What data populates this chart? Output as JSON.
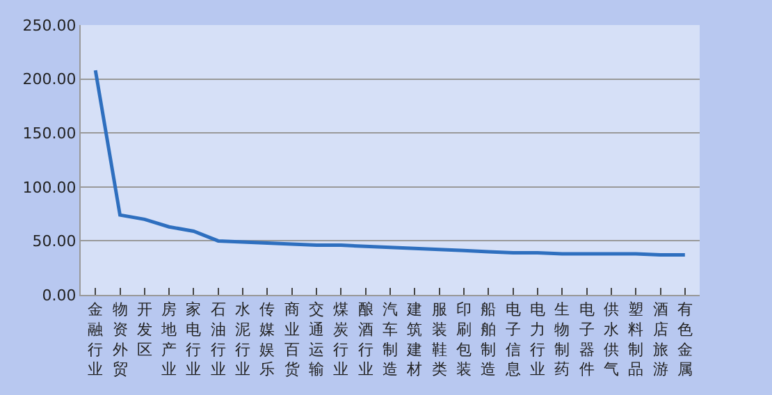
{
  "chart_data": {
    "type": "line",
    "categories": [
      "金融行业",
      "物资外贸",
      "开发区",
      "房地产业",
      "家电行业",
      "石油行业",
      "水泥行业",
      "传媒娱乐",
      "商业百货",
      "交通运输",
      "煤炭行业",
      "酿酒行业",
      "汽车制造",
      "建筑建材",
      "服装鞋类",
      "印刷包装",
      "船舶制造",
      "电子信息",
      "电力行业",
      "生物制药",
      "电子器件",
      "供水供气",
      "塑料制品",
      "酒店旅游",
      "有色金属"
    ],
    "series": [
      {
        "color": "#2e6fbf",
        "values": [
          208,
          74,
          70,
          63,
          59,
          50,
          49,
          48,
          47,
          46,
          46,
          45,
          44,
          43,
          42,
          41,
          40,
          39,
          39,
          38,
          38,
          38,
          38,
          37,
          37
        ]
      }
    ],
    "ylim": [
      0,
      250
    ],
    "yticks": [
      {
        "value": 0,
        "label": "0.00"
      },
      {
        "value": 50,
        "label": "50.00"
      },
      {
        "value": 100,
        "label": "100.00"
      },
      {
        "value": 150,
        "label": "150.00"
      },
      {
        "value": 200,
        "label": "200.00"
      },
      {
        "value": 250,
        "label": "250.00"
      }
    ],
    "grid": "y",
    "marker": "none",
    "line_style": "solid"
  }
}
